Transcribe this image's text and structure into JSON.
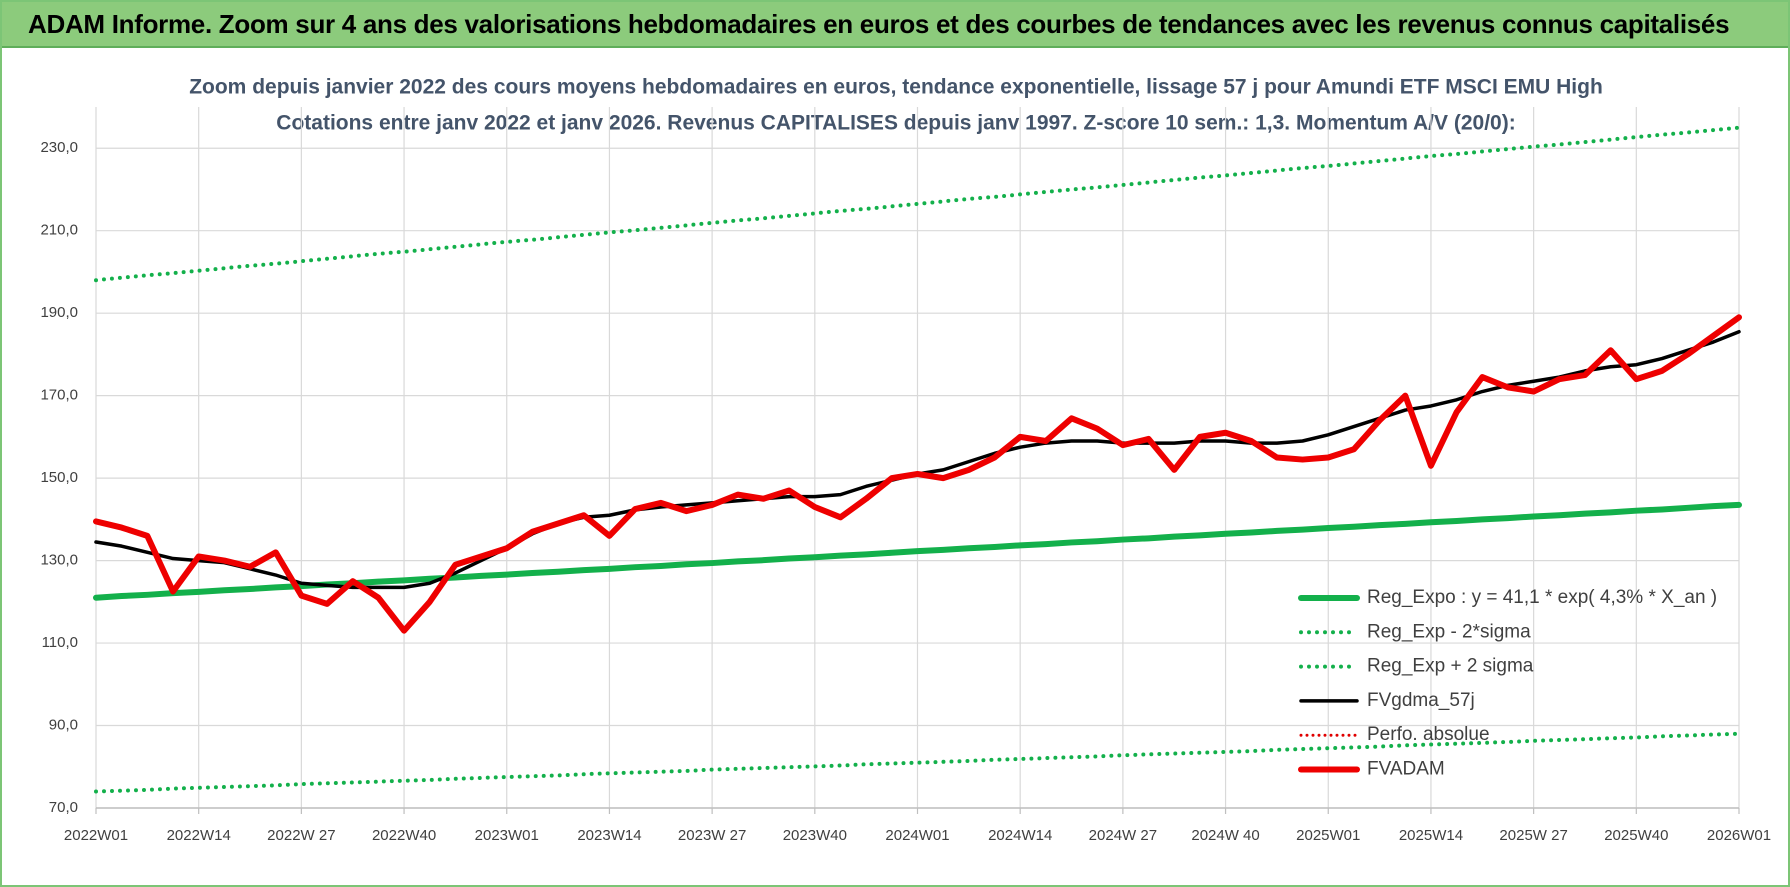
{
  "header": {
    "title": "ADAM Informe. Zoom sur 4 ans des valorisations hebdomadaires en euros et des courbes de tendances avec les revenus connus capitalisés"
  },
  "chart_data": {
    "type": "line",
    "title": "Zoom depuis janvier 2022 des cours moyens hebdomadaires en euros, tendance exponentielle, lissage 57 j pour Amundi ETF MSCI EMU High",
    "subtitle": "Cotations entre janv 2022 et janv 2026. Revenus CAPITALISES depuis janv 1997. Z-score 10 sem.: 1,3. Momentum A/V (20/0):",
    "categories": [
      "2022W01",
      null,
      null,
      null,
      "2022W14",
      null,
      null,
      null,
      "2022W 27",
      null,
      null,
      null,
      "2022W40",
      null,
      null,
      null,
      "2023W01",
      null,
      null,
      null,
      "2023W14",
      null,
      null,
      null,
      "2023W 27",
      null,
      null,
      null,
      "2023W40",
      null,
      null,
      null,
      "2024W01",
      null,
      null,
      null,
      "2024W14",
      null,
      null,
      null,
      "2024W 27",
      null,
      null,
      null,
      "2024W 40",
      null,
      null,
      null,
      "2025W01",
      null,
      null,
      null,
      "2025W14",
      null,
      null,
      null,
      "2025W 27",
      null,
      null,
      null,
      "2025W40",
      null,
      null,
      null,
      "2026W01"
    ],
    "ylim": [
      70,
      240
    ],
    "yticks": [
      {
        "value": 70,
        "label": "70,0"
      },
      {
        "value": 90,
        "label": "90,0"
      },
      {
        "value": 110,
        "label": "110,0"
      },
      {
        "value": 130,
        "label": "130,0"
      },
      {
        "value": 150,
        "label": "150,0"
      },
      {
        "value": 170,
        "label": "170,0"
      },
      {
        "value": 190,
        "label": "190,0"
      },
      {
        "value": 210,
        "label": "210,0"
      },
      {
        "value": 230,
        "label": "230,0"
      }
    ],
    "grid": true,
    "legend": "lower right",
    "series": [
      {
        "name": "Reg_Expo : y = 41,1 * exp( 4,3% *  X_an )",
        "color": "#13b04b",
        "style": "solid",
        "width": 6,
        "values": [
          121.0,
          121.4,
          121.7,
          122.1,
          122.4,
          122.8,
          123.1,
          123.5,
          123.8,
          124.2,
          124.5,
          124.9,
          125.2,
          125.6,
          125.9,
          126.3,
          126.6,
          127.0,
          127.3,
          127.7,
          128.0,
          128.4,
          128.7,
          129.1,
          129.4,
          129.8,
          130.1,
          130.5,
          130.8,
          131.2,
          131.5,
          131.9,
          132.3,
          132.6,
          133.0,
          133.3,
          133.7,
          134.0,
          134.4,
          134.7,
          135.1,
          135.4,
          135.8,
          136.1,
          136.5,
          136.8,
          137.2,
          137.5,
          137.9,
          138.2,
          138.6,
          138.9,
          139.3,
          139.6,
          140.0,
          140.3,
          140.7,
          141.0,
          141.4,
          141.7,
          142.1,
          142.4,
          142.8,
          143.2,
          143.5
        ]
      },
      {
        "name": "Reg_Exp - 2*sigma",
        "color": "#13b04b",
        "style": "dotted",
        "width": 4,
        "values": [
          74.0,
          74.2,
          74.4,
          74.7,
          74.9,
          75.1,
          75.3,
          75.5,
          75.8,
          76.0,
          76.2,
          76.4,
          76.6,
          76.8,
          77.1,
          77.3,
          77.5,
          77.7,
          77.9,
          78.2,
          78.4,
          78.6,
          78.8,
          79.0,
          79.3,
          79.5,
          79.7,
          79.9,
          80.1,
          80.3,
          80.6,
          80.8,
          81.0,
          81.2,
          81.4,
          81.7,
          81.9,
          82.1,
          82.3,
          82.5,
          82.8,
          83.0,
          83.2,
          83.4,
          83.6,
          83.8,
          84.1,
          84.3,
          84.5,
          84.7,
          84.9,
          85.2,
          85.4,
          85.6,
          85.8,
          86.0,
          86.3,
          86.5,
          86.7,
          86.9,
          87.1,
          87.4,
          87.6,
          87.8,
          88.0
        ]
      },
      {
        "name": "Reg_Exp + 2 sigma",
        "color": "#13b04b",
        "style": "dotted",
        "width": 4,
        "values": [
          198.0,
          198.6,
          199.2,
          199.7,
          200.3,
          200.9,
          201.5,
          202.0,
          202.6,
          203.2,
          203.8,
          204.4,
          204.9,
          205.5,
          206.1,
          206.7,
          207.3,
          207.8,
          208.4,
          209.0,
          209.6,
          210.1,
          210.7,
          211.3,
          211.9,
          212.5,
          213.0,
          213.6,
          214.2,
          214.8,
          215.3,
          215.9,
          216.5,
          217.1,
          217.7,
          218.2,
          218.8,
          219.4,
          220.0,
          220.5,
          221.1,
          221.7,
          222.3,
          222.9,
          223.4,
          224.0,
          224.6,
          225.2,
          225.7,
          226.3,
          226.9,
          227.5,
          228.1,
          228.6,
          229.2,
          229.8,
          230.4,
          230.9,
          231.5,
          232.1,
          232.7,
          233.3,
          233.8,
          234.4,
          235.0
        ]
      },
      {
        "name": "FVgdma_57j",
        "color": "#000000",
        "style": "solid",
        "width": 3.5,
        "values": [
          134.5,
          133.5,
          132,
          130.5,
          130,
          129.5,
          128,
          126.5,
          124.5,
          124,
          123.5,
          123.5,
          123.5,
          124.5,
          127,
          130,
          133,
          136.5,
          139,
          140.5,
          141,
          142.3,
          143,
          143.5,
          144,
          144.5,
          145,
          145.5,
          145.5,
          146,
          148,
          149.5,
          151,
          152,
          154,
          156,
          157.5,
          158.5,
          159,
          159,
          158.5,
          158.5,
          158.5,
          159,
          159,
          158.5,
          158.5,
          159,
          160.5,
          162.5,
          164.5,
          166.5,
          167.5,
          169,
          171,
          172.5,
          173.5,
          174.5,
          176,
          177,
          177.5,
          179,
          181,
          183,
          185.5
        ]
      },
      {
        "name": "Perfo. absolue",
        "color": "#e00000",
        "style": "dotted",
        "width": 3
      },
      {
        "name": "FVADAM",
        "color": "#ee0000",
        "style": "solid",
        "width": 6,
        "values": [
          139.5,
          138,
          136,
          122.5,
          131,
          130,
          128.5,
          132,
          121.5,
          119.5,
          125,
          121,
          113,
          120,
          129,
          131,
          133,
          137,
          139,
          141,
          136,
          142.5,
          144,
          142,
          143.5,
          146,
          145,
          147,
          143,
          140.5,
          145,
          150,
          151,
          150,
          152,
          155,
          160,
          159,
          164.5,
          162,
          158,
          159.5,
          152,
          160,
          161,
          159,
          155,
          154.5,
          155,
          157,
          164,
          170,
          153,
          166,
          174.5,
          172,
          171,
          174,
          175,
          181,
          174,
          176,
          180,
          184.5,
          189
        ]
      }
    ]
  }
}
